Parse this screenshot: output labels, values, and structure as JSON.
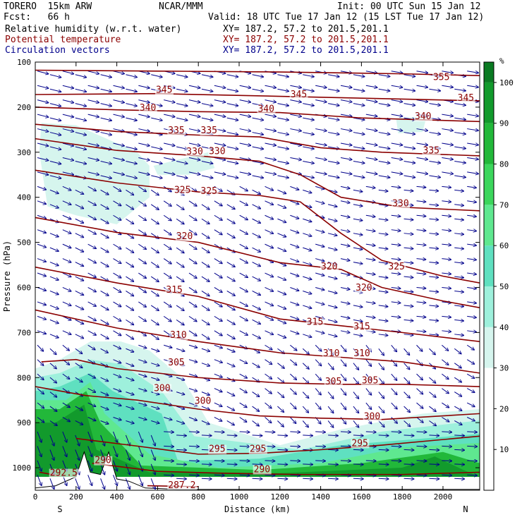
{
  "header": {
    "model": "TORERO  15km ARW",
    "center": "NCAR/MMM",
    "init": "Init: 00 UTC Sun 15 Jan 12",
    "fcst": "Fcst:   66 h",
    "valid": "Valid: 18 UTC Tue 17 Jan 12 (15 LST Tue 17 Jan 12)",
    "field1": "Relative humidity (w.r.t. water)",
    "field2": "Potential temperature",
    "field3": "Circulation vectors",
    "xy1": "XY= 187.2, 57.2 to 201.5,201.1",
    "xy2": "XY= 187.2, 57.2 to 201.5,201.1",
    "xy3": "XY= 187.2, 57.2 to 201.5,201.1"
  },
  "colors": {
    "rh_text": "#000000",
    "theta": "#8b0000",
    "vectors": "#00008b"
  },
  "chart_data": {
    "type": "heatmap",
    "xlabel": "Distance (km)",
    "ylabel": "Pressure (hPa)",
    "x_ticks": [
      0,
      200,
      400,
      600,
      800,
      1000,
      1200,
      1400,
      1600,
      1800,
      2000
    ],
    "y_ticks": [
      100,
      200,
      300,
      400,
      500,
      600,
      700,
      800,
      900,
      1000
    ],
    "xlim": [
      0,
      2180
    ],
    "ylim": [
      1050,
      100
    ],
    "x_end_labels": {
      "left": "S",
      "right": "N"
    },
    "colorbar": {
      "unit": "%",
      "ticks": [
        10,
        20,
        30,
        40,
        50,
        60,
        70,
        80,
        90,
        100
      ],
      "levels": [
        {
          "from": 0,
          "to": 30,
          "color": "#ffffff"
        },
        {
          "from": 30,
          "to": 40,
          "color": "#d6f5ee"
        },
        {
          "from": 40,
          "to": 50,
          "color": "#9ef0dc"
        },
        {
          "from": 50,
          "to": 60,
          "color": "#5fe0c0"
        },
        {
          "from": 60,
          "to": 70,
          "color": "#5fe890"
        },
        {
          "from": 70,
          "to": 80,
          "color": "#3cd65c"
        },
        {
          "from": 80,
          "to": 90,
          "color": "#22b83a"
        },
        {
          "from": 90,
          "to": 100,
          "color": "#129a2c"
        },
        {
          "from": 100,
          "to": 105,
          "color": "#0a7a22"
        }
      ]
    },
    "theta_contours": [
      {
        "value": "355",
        "label_pos": [
          [
            2000,
            140
          ]
        ],
        "points": [
          [
            0,
            118
          ],
          [
            600,
            120
          ],
          [
            1200,
            122
          ],
          [
            1800,
            126
          ],
          [
            2180,
            130
          ]
        ]
      },
      {
        "value": "345",
        "label_pos": [
          [
            640,
            168
          ],
          [
            1300,
            178
          ],
          [
            2120,
            186
          ]
        ],
        "points": [
          [
            0,
            172
          ],
          [
            600,
            170
          ],
          [
            1200,
            176
          ],
          [
            1800,
            182
          ],
          [
            2180,
            186
          ]
        ]
      },
      {
        "value": "340",
        "label_pos": [
          [
            560,
            208
          ],
          [
            1140,
            210
          ],
          [
            1910,
            227
          ]
        ],
        "points": [
          [
            0,
            200
          ],
          [
            400,
            206
          ],
          [
            800,
            210
          ],
          [
            1200,
            212
          ],
          [
            1600,
            224
          ],
          [
            1900,
            228
          ],
          [
            2180,
            232
          ]
        ]
      },
      {
        "value": "335",
        "label_pos": [
          [
            700,
            258
          ],
          [
            860,
            258
          ],
          [
            1950,
            303
          ]
        ],
        "points": [
          [
            0,
            238
          ],
          [
            400,
            254
          ],
          [
            800,
            262
          ],
          [
            1100,
            266
          ],
          [
            1400,
            290
          ],
          [
            1700,
            300
          ],
          [
            2180,
            308
          ]
        ]
      },
      {
        "value": "330",
        "label_pos": [
          [
            790,
            305
          ],
          [
            900,
            304
          ],
          [
            1800,
            420
          ]
        ],
        "points": [
          [
            0,
            270
          ],
          [
            400,
            296
          ],
          [
            800,
            308
          ],
          [
            1100,
            320
          ],
          [
            1300,
            350
          ],
          [
            1500,
            400
          ],
          [
            1800,
            422
          ],
          [
            2180,
            430
          ]
        ]
      },
      {
        "value": "325",
        "label_pos": [
          [
            730,
            390
          ],
          [
            860,
            393
          ],
          [
            1780,
            560
          ]
        ],
        "points": [
          [
            0,
            340
          ],
          [
            400,
            368
          ],
          [
            800,
            388
          ],
          [
            1100,
            396
          ],
          [
            1300,
            410
          ],
          [
            1500,
            480
          ],
          [
            1700,
            540
          ],
          [
            2000,
            575
          ],
          [
            2180,
            590
          ]
        ]
      },
      {
        "value": "320",
        "label_pos": [
          [
            740,
            493
          ],
          [
            1450,
            560
          ],
          [
            1620,
            607
          ]
        ],
        "points": [
          [
            0,
            445
          ],
          [
            400,
            478
          ],
          [
            800,
            500
          ],
          [
            1200,
            545
          ],
          [
            1500,
            560
          ],
          [
            1700,
            600
          ],
          [
            2000,
            630
          ],
          [
            2180,
            645
          ]
        ]
      },
      {
        "value": "315",
        "label_pos": [
          [
            690,
            612
          ],
          [
            1380,
            683
          ],
          [
            1610,
            693
          ]
        ],
        "points": [
          [
            0,
            555
          ],
          [
            400,
            590
          ],
          [
            800,
            620
          ],
          [
            1200,
            670
          ],
          [
            1500,
            685
          ],
          [
            1800,
            700
          ],
          [
            2180,
            720
          ]
        ]
      },
      {
        "value": "310",
        "label_pos": [
          [
            710,
            712
          ],
          [
            1460,
            753
          ],
          [
            1610,
            753
          ]
        ],
        "points": [
          [
            0,
            650
          ],
          [
            400,
            690
          ],
          [
            800,
            720
          ],
          [
            1200,
            745
          ],
          [
            1500,
            755
          ],
          [
            1800,
            765
          ],
          [
            2180,
            790
          ]
        ]
      },
      {
        "value": "305",
        "label_pos": [
          [
            700,
            773
          ],
          [
            1470,
            815
          ],
          [
            1650,
            813
          ]
        ],
        "points": [
          [
            30,
            765
          ],
          [
            200,
            760
          ],
          [
            400,
            780
          ],
          [
            800,
            800
          ],
          [
            1200,
            812
          ],
          [
            1500,
            815
          ],
          [
            1800,
            815
          ],
          [
            2180,
            820
          ]
        ]
      },
      {
        "value": "300",
        "label_pos": [
          [
            630,
            830
          ],
          [
            830,
            858
          ],
          [
            1660,
            893
          ]
        ],
        "points": [
          [
            0,
            820
          ],
          [
            250,
            840
          ],
          [
            500,
            850
          ],
          [
            800,
            870
          ],
          [
            1100,
            885
          ],
          [
            1400,
            890
          ],
          [
            1700,
            893
          ],
          [
            2180,
            880
          ]
        ]
      },
      {
        "value": "295",
        "label_pos": [
          [
            900,
            965
          ],
          [
            1100,
            965
          ],
          [
            1600,
            952
          ]
        ],
        "points": [
          [
            200,
            935
          ],
          [
            500,
            952
          ],
          [
            800,
            970
          ],
          [
            1100,
            968
          ],
          [
            1400,
            960
          ],
          [
            1700,
            950
          ],
          [
            2180,
            930
          ]
        ]
      },
      {
        "value": "290",
        "label_pos": [
          [
            340,
            990
          ],
          [
            1120,
            1010
          ]
        ],
        "points": [
          [
            280,
            990
          ],
          [
            600,
            1008
          ],
          [
            900,
            1012
          ],
          [
            1300,
            1015
          ],
          [
            1800,
            1015
          ],
          [
            2180,
            1010
          ]
        ]
      },
      {
        "value": "287.2",
        "label_pos": [
          [
            700,
            1045
          ]
        ],
        "points": [
          [
            550,
            1040
          ],
          [
            800,
            1042
          ]
        ]
      },
      {
        "value": "292.5",
        "label_pos": [
          [
            120,
            1018
          ]
        ],
        "points": [
          [
            20,
            1010
          ],
          [
            120,
            1018
          ]
        ]
      }
    ],
    "rh_regions": [
      {
        "level": "35",
        "points": [
          [
            30,
            235
          ],
          [
            200,
            240
          ],
          [
            500,
            300
          ],
          [
            560,
            330
          ],
          [
            560,
            400
          ],
          [
            400,
            460
          ],
          [
            200,
            440
          ],
          [
            60,
            420
          ],
          [
            20,
            300
          ]
        ]
      },
      {
        "level": "35",
        "points": [
          [
            580,
            330
          ],
          [
            850,
            300
          ],
          [
            880,
            335
          ],
          [
            750,
            350
          ],
          [
            600,
            350
          ]
        ]
      },
      {
        "level": "35",
        "points": [
          [
            1770,
            225
          ],
          [
            1920,
            220
          ],
          [
            1900,
            255
          ],
          [
            1780,
            258
          ]
        ]
      },
      {
        "level": "35",
        "points": [
          [
            0,
            780
          ],
          [
            120,
            760
          ],
          [
            270,
            720
          ],
          [
            420,
            720
          ],
          [
            560,
            740
          ],
          [
            720,
            800
          ],
          [
            850,
            900
          ],
          [
            1200,
            950
          ],
          [
            1500,
            915
          ],
          [
            1900,
            880
          ],
          [
            2180,
            870
          ],
          [
            2180,
            1020
          ],
          [
            0,
            1020
          ]
        ]
      },
      {
        "level": "45",
        "points": [
          [
            0,
            800
          ],
          [
            120,
            790
          ],
          [
            270,
            760
          ],
          [
            420,
            770
          ],
          [
            620,
            830
          ],
          [
            780,
            930
          ],
          [
            1300,
            960
          ],
          [
            1700,
            920
          ],
          [
            2180,
            895
          ],
          [
            2180,
            1020
          ],
          [
            0,
            1020
          ]
        ]
      },
      {
        "level": "55",
        "points": [
          [
            0,
            830
          ],
          [
            120,
            820
          ],
          [
            270,
            790
          ],
          [
            380,
            830
          ],
          [
            620,
            880
          ],
          [
            700,
            985
          ],
          [
            1100,
            980
          ],
          [
            1500,
            950
          ],
          [
            2180,
            925
          ],
          [
            2180,
            1020
          ],
          [
            0,
            1020
          ]
        ]
      },
      {
        "level": "65",
        "points": [
          [
            0,
            850
          ],
          [
            150,
            850
          ],
          [
            270,
            810
          ],
          [
            340,
            880
          ],
          [
            560,
            970
          ],
          [
            900,
            1000
          ],
          [
            1400,
            990
          ],
          [
            1800,
            955
          ],
          [
            2180,
            945
          ],
          [
            2180,
            1020
          ],
          [
            0,
            1020
          ]
        ]
      },
      {
        "level": "85",
        "points": [
          [
            0,
            870
          ],
          [
            120,
            870
          ],
          [
            250,
            830
          ],
          [
            320,
            900
          ],
          [
            520,
            995
          ],
          [
            1100,
            1005
          ],
          [
            1600,
            990
          ],
          [
            2000,
            965
          ],
          [
            2180,
            990
          ],
          [
            2180,
            1020
          ],
          [
            0,
            1020
          ]
        ]
      },
      {
        "level": "95",
        "points": [
          [
            0,
            900
          ],
          [
            100,
            900
          ],
          [
            240,
            860
          ],
          [
            300,
            960
          ],
          [
            560,
            1010
          ],
          [
            1200,
            1012
          ],
          [
            1800,
            1000
          ],
          [
            1960,
            975
          ],
          [
            2100,
            1005
          ],
          [
            2180,
            1020
          ],
          [
            0,
            1020
          ]
        ]
      }
    ],
    "terrain": [
      [
        0,
        1045
      ],
      [
        100,
        1040
      ],
      [
        200,
        1020
      ],
      [
        240,
        965
      ],
      [
        270,
        1010
      ],
      [
        320,
        1015
      ],
      [
        360,
        965
      ],
      [
        400,
        1025
      ],
      [
        460,
        1030
      ],
      [
        540,
        1045
      ],
      [
        700,
        1048
      ],
      [
        1000,
        1048
      ],
      [
        1400,
        1048
      ],
      [
        2180,
        1048
      ]
    ]
  }
}
